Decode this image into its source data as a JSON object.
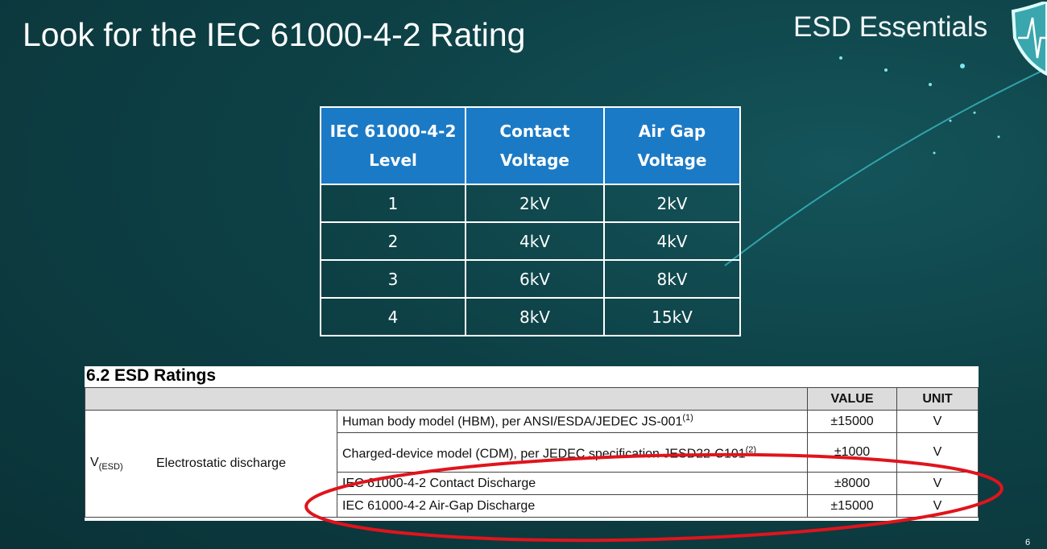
{
  "slide": {
    "title": "Look for the IEC 61000-4-2 Rating",
    "brand": "ESD Essentials",
    "logo_icon": "shield-heartbeat-icon",
    "page_number": "6",
    "accent_color": "#1b7ac6",
    "highlight_color": "#e0141c"
  },
  "iec_table": {
    "headers": [
      "IEC 61000-4-2 Level",
      "Contact Voltage",
      "Air Gap Voltage"
    ],
    "rows": [
      [
        "1",
        "2kV",
        "2kV"
      ],
      [
        "2",
        "4kV",
        "4kV"
      ],
      [
        "3",
        "6kV",
        "8kV"
      ],
      [
        "4",
        "8kV",
        "15kV"
      ]
    ]
  },
  "esd_ratings": {
    "section": "6.2   ESD Ratings",
    "headers": {
      "value": "VALUE",
      "unit": "UNIT"
    },
    "symbol": "V",
    "symbol_sub": "(ESD)",
    "parameter": "Electrostatic discharge",
    "rows": [
      {
        "condition": "Human body model (HBM), per ANSI/ESDA/JEDEC JS-001",
        "note": "(1)",
        "value": "±15000",
        "unit": "V"
      },
      {
        "condition": "Charged-device model (CDM), per JEDEC specification JESD22-C101",
        "note": "(2)",
        "value": "±1000",
        "unit": "V"
      },
      {
        "condition": "IEC 61000-4-2 Contact Discharge",
        "note": "",
        "value": "±8000",
        "unit": "V"
      },
      {
        "condition": "IEC 61000-4-2 Air-Gap Discharge",
        "note": "",
        "value": "±15000",
        "unit": "V"
      }
    ]
  }
}
